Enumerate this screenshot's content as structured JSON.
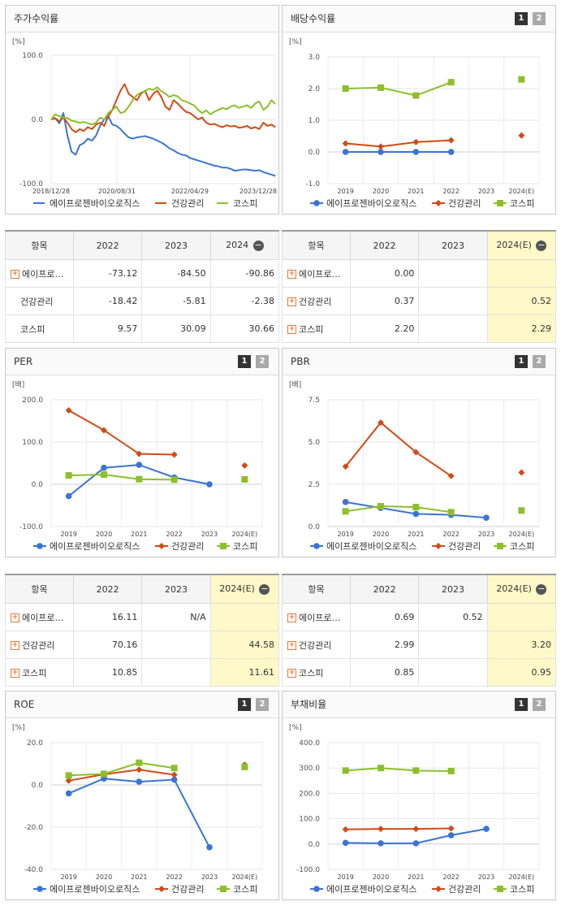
{
  "charts": [
    {
      "id": "stock",
      "title": "주가수익률",
      "unit": "[%]",
      "ylim": [
        -100,
        100
      ],
      "yticks": [
        "100.0",
        "0.0",
        "-100.0"
      ],
      "ytick_values": [
        100,
        0,
        -100
      ],
      "xticks": [
        "2018/12/28",
        "2020/08/31",
        "2022/04/29",
        "2023/12/28"
      ],
      "xtick_positions": [
        0,
        16.1,
        34.0,
        54.9
      ],
      "x_max": 54.9,
      "legend": [
        "에이프로젠바이오로직스",
        "건강관리",
        "코스피"
      ]
    },
    {
      "id": "dividend",
      "title": "배당수익률",
      "unit": "[%]",
      "ylim": [
        -1,
        3
      ],
      "yticks": [
        "3.0",
        "2.0",
        "1.0",
        "0.0",
        "-1.0"
      ],
      "ytick_values": [
        3,
        2,
        1,
        0,
        -1
      ],
      "categories": [
        "2019",
        "2020",
        "2021",
        "2022",
        "2023",
        "2024(E)"
      ],
      "legend": [
        "에이프로젠바이오로직스",
        "건강관리",
        "코스피"
      ],
      "buttons": [
        "1",
        "2"
      ]
    },
    {
      "id": "per",
      "title": "PER",
      "unit": "[배]",
      "ylim": [
        -100,
        200
      ],
      "yticks": [
        "200.0",
        "100.0",
        "0.0",
        "-100.0"
      ],
      "ytick_values": [
        200,
        100,
        0,
        -100
      ],
      "categories": [
        "2019",
        "2020",
        "2021",
        "2022",
        "2023",
        "2024(E)"
      ],
      "legend": [
        "에이프로젠바이오로직스",
        "건강관리",
        "코스피"
      ],
      "buttons": [
        "1",
        "2"
      ]
    },
    {
      "id": "pbr",
      "title": "PBR",
      "unit": "[배]",
      "ylim": [
        0,
        7.5
      ],
      "yticks": [
        "7.5",
        "5.0",
        "2.5",
        "0.0"
      ],
      "ytick_values": [
        7.5,
        5,
        2.5,
        0
      ],
      "categories": [
        "2019",
        "2020",
        "2021",
        "2022",
        "2023",
        "2024(E)"
      ],
      "legend": [
        "에이프로젠바이오로직스",
        "건강관리",
        "코스피"
      ],
      "buttons": [
        "1",
        "2"
      ]
    },
    {
      "id": "roe",
      "title": "ROE",
      "unit": "[%]",
      "ylim": [
        -40,
        20
      ],
      "yticks": [
        "20.0",
        "0.0",
        "-20.0",
        "-40.0"
      ],
      "ytick_values": [
        20,
        0,
        -20,
        -40
      ],
      "categories": [
        "2019",
        "2020",
        "2021",
        "2022",
        "2023",
        "2024(E)"
      ],
      "legend": [
        "에이프로젠바이오로직스",
        "건강관리",
        "코스피"
      ],
      "buttons": [
        "1",
        "2"
      ]
    },
    {
      "id": "debt",
      "title": "부채비율",
      "unit": "[%]",
      "ylim": [
        -100,
        400
      ],
      "yticks": [
        "400.0",
        "300.0",
        "200.0",
        "100.0",
        "0.0",
        "-100.0"
      ],
      "ytick_values": [
        400,
        300,
        200,
        100,
        0,
        -100
      ],
      "categories": [
        "2019",
        "2020",
        "2021",
        "2022",
        "2023",
        "2024(E)"
      ],
      "legend": [
        "에이프로젠바이오로직스",
        "건강관리",
        "코스피"
      ],
      "buttons": [
        "1",
        "2"
      ]
    }
  ],
  "chart_data": [
    {
      "type": "line",
      "title": "주가수익률",
      "ylabel": "[%]",
      "ylim": [
        -100,
        100
      ],
      "x_tick_labels": [
        "2018/12/28",
        "2020/08/31",
        "2022/04/29",
        "2023/12/28"
      ],
      "series": [
        {
          "name": "에이프로젠바이오로직스",
          "color": "#3a74d4",
          "x": [
            0,
            1,
            2,
            3,
            4,
            5,
            6,
            7,
            8,
            9,
            10,
            11,
            12,
            13,
            14,
            15,
            16,
            17,
            18,
            19,
            20,
            21,
            22,
            23,
            24,
            25,
            26,
            27,
            28,
            29,
            30,
            31,
            32,
            33,
            34,
            35,
            36,
            37,
            38,
            39,
            40,
            41,
            42,
            43,
            44,
            45,
            46,
            47,
            48,
            49,
            50,
            51,
            52,
            53,
            54,
            54.9
          ],
          "values": [
            0,
            2,
            -6,
            10,
            -25,
            -50,
            -55,
            -40,
            -37,
            -30,
            -33,
            -25,
            -10,
            0,
            5,
            -8,
            -10,
            -15,
            -22,
            -28,
            -30,
            -28,
            -27,
            -26,
            -28,
            -30,
            -33,
            -36,
            -40,
            -45,
            -48,
            -52,
            -55,
            -56,
            -60,
            -62,
            -64,
            -66,
            -68,
            -70,
            -72,
            -73,
            -75,
            -75,
            -77,
            -80,
            -79,
            -78,
            -78,
            -79,
            -80,
            -79,
            -82,
            -84,
            -86,
            -88
          ]
        },
        {
          "name": "건강관리",
          "color": "#d24a16",
          "x": [
            0,
            1,
            2,
            3,
            4,
            5,
            6,
            7,
            8,
            9,
            10,
            11,
            12,
            13,
            14,
            15,
            16,
            17,
            18,
            19,
            20,
            21,
            22,
            23,
            24,
            25,
            26,
            27,
            28,
            29,
            30,
            31,
            32,
            33,
            34,
            35,
            36,
            37,
            38,
            39,
            40,
            41,
            42,
            43,
            44,
            45,
            46,
            47,
            48,
            49,
            50,
            51,
            52,
            53,
            54,
            54.9
          ],
          "values": [
            0,
            2,
            -3,
            3,
            -5,
            -15,
            -20,
            -15,
            -18,
            -12,
            -15,
            -8,
            -5,
            -10,
            5,
            15,
            30,
            45,
            55,
            40,
            35,
            30,
            40,
            45,
            30,
            40,
            45,
            35,
            20,
            15,
            30,
            25,
            18,
            12,
            10,
            5,
            0,
            3,
            -5,
            -8,
            -7,
            -10,
            -12,
            -9,
            -11,
            -10,
            -13,
            -12,
            -10,
            -14,
            -12,
            -15,
            -5,
            -10,
            -8,
            -12
          ]
        },
        {
          "name": "코스피",
          "color": "#8dbf2a",
          "x": [
            0,
            1,
            2,
            3,
            4,
            5,
            6,
            7,
            8,
            9,
            10,
            11,
            12,
            13,
            14,
            15,
            16,
            17,
            18,
            19,
            20,
            21,
            22,
            23,
            24,
            25,
            26,
            27,
            28,
            29,
            30,
            31,
            32,
            33,
            34,
            35,
            36,
            37,
            38,
            39,
            40,
            41,
            42,
            43,
            44,
            45,
            46,
            47,
            48,
            49,
            50,
            51,
            52,
            53,
            54,
            54.9
          ],
          "values": [
            0,
            8,
            5,
            3,
            2,
            -2,
            -3,
            -5,
            -4,
            -6,
            -8,
            -5,
            3,
            0,
            10,
            15,
            20,
            10,
            12,
            20,
            30,
            38,
            42,
            44,
            48,
            46,
            50,
            44,
            40,
            35,
            38,
            36,
            30,
            28,
            25,
            22,
            15,
            10,
            14,
            8,
            12,
            15,
            18,
            16,
            20,
            22,
            18,
            20,
            22,
            18,
            25,
            28,
            15,
            20,
            30,
            24
          ]
        }
      ]
    },
    {
      "type": "line",
      "title": "배당수익률",
      "ylabel": "[%]",
      "ylim": [
        -1,
        3
      ],
      "categories": [
        "2019",
        "2020",
        "2021",
        "2022",
        "2023",
        "2024(E)"
      ],
      "series": [
        {
          "name": "에이프로젠바이오로직스",
          "color": "#3a74d4",
          "marker": "circle",
          "values": [
            0.0,
            0.0,
            0.0,
            0.0,
            null,
            null
          ]
        },
        {
          "name": "건강관리",
          "color": "#d24a16",
          "marker": "diamond",
          "values": [
            0.27,
            0.17,
            0.31,
            0.37,
            null,
            0.52
          ]
        },
        {
          "name": "코스피",
          "color": "#8dbf2a",
          "marker": "square",
          "values": [
            2.0,
            2.03,
            1.78,
            2.2,
            null,
            2.29
          ]
        }
      ]
    },
    {
      "type": "line",
      "title": "PER",
      "ylabel": "[배]",
      "ylim": [
        -100,
        200
      ],
      "categories": [
        "2019",
        "2020",
        "2021",
        "2022",
        "2023",
        "2024(E)"
      ],
      "series": [
        {
          "name": "에이프로젠바이오로직스",
          "color": "#3a74d4",
          "marker": "circle",
          "values": [
            -28,
            39,
            46,
            16.11,
            0,
            null
          ]
        },
        {
          "name": "건강관리",
          "color": "#d24a16",
          "marker": "diamond",
          "values": [
            175,
            128,
            72,
            70.16,
            null,
            44.58
          ]
        },
        {
          "name": "코스피",
          "color": "#8dbf2a",
          "marker": "square",
          "values": [
            21,
            23,
            12,
            10.85,
            null,
            11.61
          ]
        }
      ]
    },
    {
      "type": "line",
      "title": "PBR",
      "ylabel": "[배]",
      "ylim": [
        0,
        7.5
      ],
      "categories": [
        "2019",
        "2020",
        "2021",
        "2022",
        "2023",
        "2024(E)"
      ],
      "series": [
        {
          "name": "에이프로젠바이오로직스",
          "color": "#3a74d4",
          "marker": "circle",
          "values": [
            1.45,
            1.1,
            0.75,
            0.69,
            0.52,
            null
          ]
        },
        {
          "name": "건강관리",
          "color": "#d24a16",
          "marker": "diamond",
          "values": [
            3.55,
            6.15,
            4.4,
            2.99,
            null,
            3.2
          ]
        },
        {
          "name": "코스피",
          "color": "#8dbf2a",
          "marker": "square",
          "values": [
            0.9,
            1.2,
            1.15,
            0.85,
            null,
            0.95
          ]
        }
      ]
    },
    {
      "type": "line",
      "title": "ROE",
      "ylabel": "[%]",
      "ylim": [
        -40,
        20
      ],
      "categories": [
        "2019",
        "2020",
        "2021",
        "2022",
        "2023",
        "2024(E)"
      ],
      "series": [
        {
          "name": "에이프로젠바이오로직스",
          "color": "#3a74d4",
          "marker": "circle",
          "values": [
            -4.0,
            3.0,
            1.5,
            2.5,
            -29.5,
            null
          ]
        },
        {
          "name": "건강관리",
          "color": "#d24a16",
          "marker": "diamond",
          "values": [
            2.0,
            5.0,
            7.2,
            4.8,
            null,
            9.5
          ]
        },
        {
          "name": "코스피",
          "color": "#8dbf2a",
          "marker": "square",
          "values": [
            4.5,
            5.2,
            10.5,
            8.0,
            null,
            8.5
          ]
        }
      ]
    },
    {
      "type": "line",
      "title": "부채비율",
      "ylabel": "[%]",
      "ylim": [
        -100,
        400
      ],
      "categories": [
        "2019",
        "2020",
        "2021",
        "2022",
        "2023",
        "2024(E)"
      ],
      "series": [
        {
          "name": "에이프로젠바이오로직스",
          "color": "#3a74d4",
          "marker": "circle",
          "values": [
            5,
            3,
            3,
            35,
            60,
            null
          ]
        },
        {
          "name": "건강관리",
          "color": "#d24a16",
          "marker": "diamond",
          "values": [
            58,
            60,
            60,
            62,
            null,
            null
          ]
        },
        {
          "name": "코스피",
          "color": "#8dbf2a",
          "marker": "square",
          "values": [
            290,
            300,
            290,
            288,
            null,
            null
          ]
        }
      ]
    }
  ],
  "tables": [
    {
      "id": "stock",
      "header": [
        "항목",
        "2022",
        "2023",
        "2024"
      ],
      "rows": [
        {
          "name": "에이프로…",
          "plus": true,
          "v": [
            "-73.12",
            "-84.50",
            "-90.86"
          ]
        },
        {
          "name": "건강관리",
          "plus": false,
          "v": [
            "-18.42",
            "-5.81",
            "-2.38"
          ]
        },
        {
          "name": "코스피",
          "plus": false,
          "v": [
            "9.57",
            "30.09",
            "30.66"
          ]
        }
      ]
    },
    {
      "id": "dividend",
      "header": [
        "항목",
        "2022",
        "2023",
        "2024(E)"
      ],
      "rows": [
        {
          "name": "에이프로…",
          "plus": true,
          "v": [
            "0.00",
            "",
            ""
          ]
        },
        {
          "name": "건강관리",
          "plus": true,
          "v": [
            "0.37",
            "",
            "0.52"
          ]
        },
        {
          "name": "코스피",
          "plus": true,
          "v": [
            "2.20",
            "",
            "2.29"
          ]
        }
      ]
    },
    {
      "id": "per",
      "header": [
        "항목",
        "2022",
        "2023",
        "2024(E)"
      ],
      "rows": [
        {
          "name": "에이프로…",
          "plus": true,
          "v": [
            "16.11",
            "N/A",
            ""
          ]
        },
        {
          "name": "건강관리",
          "plus": true,
          "v": [
            "70.16",
            "",
            "44.58"
          ]
        },
        {
          "name": "코스피",
          "plus": true,
          "v": [
            "10.85",
            "",
            "11.61"
          ]
        }
      ]
    },
    {
      "id": "pbr",
      "header": [
        "항목",
        "2022",
        "2023",
        "2024(E)"
      ],
      "rows": [
        {
          "name": "에이프로…",
          "plus": true,
          "v": [
            "0.69",
            "0.52",
            ""
          ]
        },
        {
          "name": "건강관리",
          "plus": true,
          "v": [
            "2.99",
            "",
            "3.20"
          ]
        },
        {
          "name": "코스피",
          "plus": true,
          "v": [
            "0.85",
            "",
            "0.95"
          ]
        }
      ]
    }
  ],
  "colors": {
    "blue": "#3a74d4",
    "red": "#d24a16",
    "green": "#8dbf2a",
    "estimate_bg": "#fff8c8"
  },
  "icons": {
    "expand": "plus-box-icon",
    "collapse": "minus-circle-icon"
  }
}
